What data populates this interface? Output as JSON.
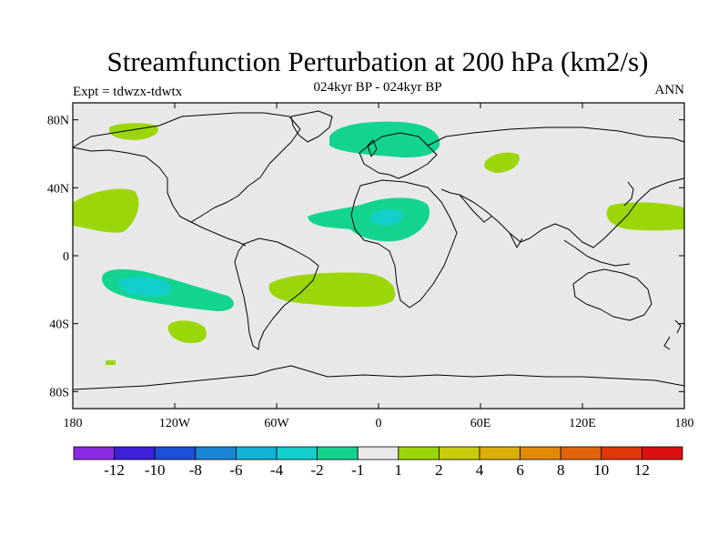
{
  "title": "Streamfunction Perturbation at 200 hPa (km2/s)",
  "subtitle": "024kyr BP - 024kyr BP",
  "left_string": "Expt = tdwzx-tdwtx",
  "right_string": "ANN",
  "lat_ticks": [
    {
      "value": 80,
      "label": "80N"
    },
    {
      "value": 40,
      "label": "40N"
    },
    {
      "value": 0,
      "label": "0"
    },
    {
      "value": -40,
      "label": "40S"
    },
    {
      "value": -80,
      "label": "80S"
    }
  ],
  "lon_ticks": [
    {
      "value": -180,
      "label": "180"
    },
    {
      "value": -120,
      "label": "120W"
    },
    {
      "value": -60,
      "label": "60W"
    },
    {
      "value": 0,
      "label": "0"
    },
    {
      "value": 60,
      "label": "60E"
    },
    {
      "value": 120,
      "label": "120E"
    },
    {
      "value": 180,
      "label": "180"
    }
  ],
  "colorbar": {
    "colors": [
      "#8a2be2",
      "#3c1fd6",
      "#1e4ed6",
      "#1a86d6",
      "#12b2d6",
      "#12cfcc",
      "#12d48e",
      "#e8e8e8",
      "#9bd60a",
      "#c8cc0a",
      "#dcae08",
      "#e28a08",
      "#e26408",
      "#e0380a",
      "#dc1010"
    ],
    "labels": [
      "-12",
      "-10",
      "-8",
      "-6",
      "-4",
      "-2",
      "-1",
      "1",
      "2",
      "4",
      "6",
      "8",
      "10",
      "12"
    ]
  },
  "colors": {
    "background": "#e8e8e8",
    "green_positive": "#9bd60a",
    "teal_negative": "#12d48e",
    "cyan_negative": "#12cfcc"
  }
}
